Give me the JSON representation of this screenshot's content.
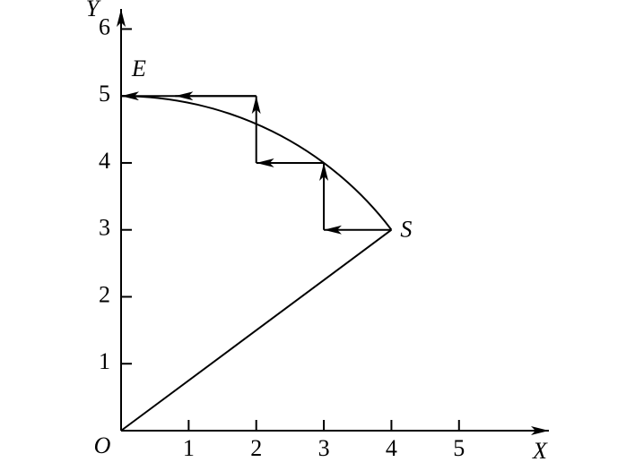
{
  "axes": {
    "x_label": "X",
    "y_label": "Y",
    "origin_label": "O",
    "xlim": [
      0,
      6.33
    ],
    "ylim": [
      0,
      6.3
    ],
    "xticks": [
      1,
      2,
      3,
      4,
      5
    ],
    "yticks": [
      1,
      2,
      3,
      4,
      5,
      6
    ]
  },
  "points": {
    "start": {
      "label": "S",
      "x": 4,
      "y": 3
    },
    "end": {
      "label": "E",
      "x": 0,
      "y": 5
    }
  },
  "steps": {
    "x": [
      4,
      3,
      3,
      2,
      2,
      0
    ],
    "y": [
      3,
      3,
      4,
      4,
      5,
      5
    ]
  }
}
